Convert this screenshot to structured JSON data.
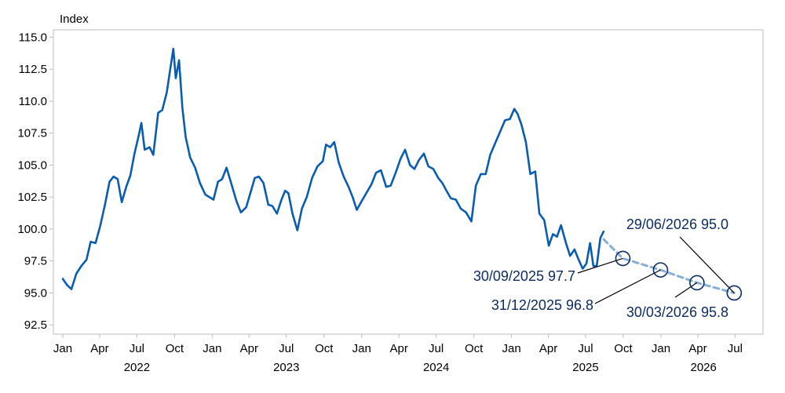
{
  "chart_data": {
    "type": "line",
    "ylabel": "Index",
    "ylim": [
      92.5,
      115.0
    ],
    "yticks": [
      92.5,
      95.0,
      97.5,
      100.0,
      102.5,
      105.0,
      107.5,
      110.0,
      112.5,
      115.0
    ],
    "ytick_labels": [
      "92.5",
      "95.0",
      "97.5",
      "100.0",
      "102.5",
      "105.0",
      "107.5",
      "110.0",
      "112.5",
      "115.0"
    ],
    "xlim": [
      "2022-01-01",
      "2026-07-31"
    ],
    "xticks": [
      {
        "date": "2022-01-01",
        "label": "Jan"
      },
      {
        "date": "2022-04-01",
        "label": "Apr"
      },
      {
        "date": "2022-07-01",
        "label": "Jul"
      },
      {
        "date": "2022-10-01",
        "label": "Oct"
      },
      {
        "date": "2023-01-01",
        "label": "Jan"
      },
      {
        "date": "2023-04-01",
        "label": "Apr"
      },
      {
        "date": "2023-07-01",
        "label": "Jul"
      },
      {
        "date": "2023-10-01",
        "label": "Oct"
      },
      {
        "date": "2024-01-01",
        "label": "Jan"
      },
      {
        "date": "2024-04-01",
        "label": "Apr"
      },
      {
        "date": "2024-07-01",
        "label": "Jul"
      },
      {
        "date": "2024-10-01",
        "label": "Oct"
      },
      {
        "date": "2025-01-01",
        "label": "Jan"
      },
      {
        "date": "2025-04-01",
        "label": "Apr"
      },
      {
        "date": "2025-07-01",
        "label": "Jul"
      },
      {
        "date": "2025-10-01",
        "label": "Oct"
      },
      {
        "date": "2026-01-01",
        "label": "Jan"
      },
      {
        "date": "2026-04-01",
        "label": "Apr"
      },
      {
        "date": "2026-07-01",
        "label": "Jul"
      }
    ],
    "year_labels": [
      {
        "date": "2022-07-01",
        "label": "2022"
      },
      {
        "date": "2023-07-01",
        "label": "2023"
      },
      {
        "date": "2024-07-01",
        "label": "2024"
      },
      {
        "date": "2025-07-01",
        "label": "2025"
      },
      {
        "date": "2026-04-15",
        "label": "2026"
      }
    ],
    "grid": false,
    "colors": {
      "actual": "#0a5cb0",
      "forecast": "#86afd4",
      "marker": "#0d2c63",
      "annotation_text": "#0d2c63",
      "axis": "#bdbdbd"
    },
    "series": [
      {
        "style": "solid",
        "x": [
          "2022-01-01",
          "2022-01-12",
          "2022-01-22",
          "2022-02-03",
          "2022-02-15",
          "2022-02-28",
          "2022-03-10",
          "2022-03-22",
          "2022-04-02",
          "2022-04-14",
          "2022-04-25",
          "2022-05-05",
          "2022-05-15",
          "2022-05-25",
          "2022-06-05",
          "2022-06-15",
          "2022-06-25",
          "2022-07-06",
          "2022-07-12",
          "2022-07-20",
          "2022-08-01",
          "2022-08-10",
          "2022-08-22",
          "2022-09-01",
          "2022-09-12",
          "2022-09-20",
          "2022-09-28",
          "2022-10-04",
          "2022-10-12",
          "2022-10-20",
          "2022-10-28",
          "2022-11-08",
          "2022-11-20",
          "2022-12-02",
          "2022-12-15",
          "2023-01-04",
          "2023-01-15",
          "2023-01-25",
          "2023-02-05",
          "2023-02-17",
          "2023-03-01",
          "2023-03-12",
          "2023-03-25",
          "2023-04-04",
          "2023-04-15",
          "2023-04-25",
          "2023-05-06",
          "2023-05-18",
          "2023-05-28",
          "2023-06-08",
          "2023-06-18",
          "2023-06-28",
          "2023-07-06",
          "2023-07-16",
          "2023-07-28",
          "2023-08-08",
          "2023-08-20",
          "2023-09-02",
          "2023-09-15",
          "2023-09-28",
          "2023-10-06",
          "2023-10-16",
          "2023-10-26",
          "2023-11-06",
          "2023-11-18",
          "2023-11-30",
          "2023-12-10",
          "2023-12-20",
          "2024-01-03",
          "2024-01-14",
          "2024-01-25",
          "2024-02-05",
          "2024-02-17",
          "2024-03-01",
          "2024-03-12",
          "2024-03-24",
          "2024-04-05",
          "2024-04-16",
          "2024-04-28",
          "2024-05-09",
          "2024-05-20",
          "2024-06-01",
          "2024-06-12",
          "2024-06-24",
          "2024-07-06",
          "2024-07-16",
          "2024-07-26",
          "2024-08-06",
          "2024-08-18",
          "2024-08-30",
          "2024-09-12",
          "2024-09-25",
          "2024-10-06",
          "2024-10-18",
          "2024-10-30",
          "2024-11-10",
          "2024-11-22",
          "2024-12-04",
          "2024-12-16",
          "2024-12-28",
          "2025-01-08",
          "2025-01-16",
          "2025-01-25",
          "2025-02-05",
          "2025-02-16",
          "2025-02-28",
          "2025-03-10",
          "2025-03-22",
          "2025-04-02",
          "2025-04-12",
          "2025-04-22",
          "2025-05-02",
          "2025-05-14",
          "2025-05-24",
          "2025-06-04",
          "2025-06-14",
          "2025-06-24",
          "2025-07-03",
          "2025-07-12",
          "2025-07-20",
          "2025-07-28",
          "2025-08-06",
          "2025-08-14"
        ],
        "values": [
          96.1,
          95.6,
          95.3,
          96.5,
          97.1,
          97.6,
          99.0,
          98.9,
          100.2,
          101.9,
          103.7,
          104.1,
          103.9,
          102.1,
          103.3,
          104.2,
          105.9,
          107.4,
          108.3,
          106.2,
          106.4,
          105.8,
          109.1,
          109.3,
          110.7,
          112.4,
          114.1,
          111.8,
          113.2,
          109.5,
          107.2,
          105.6,
          104.8,
          103.6,
          102.7,
          102.3,
          103.7,
          103.9,
          104.8,
          103.5,
          102.2,
          101.3,
          101.7,
          102.8,
          104.0,
          104.1,
          103.6,
          101.9,
          101.8,
          101.2,
          102.2,
          103.0,
          102.8,
          101.2,
          99.9,
          101.6,
          102.5,
          104.0,
          104.9,
          105.3,
          106.6,
          106.4,
          106.8,
          105.2,
          104.1,
          103.3,
          102.5,
          101.5,
          102.3,
          102.9,
          103.5,
          104.4,
          104.6,
          103.3,
          103.4,
          104.4,
          105.5,
          106.2,
          105.0,
          104.7,
          105.4,
          105.9,
          104.9,
          104.7,
          104.0,
          103.6,
          103.0,
          102.4,
          102.3,
          101.6,
          101.3,
          100.6,
          103.4,
          104.3,
          104.3,
          105.8,
          106.7,
          107.6,
          108.5,
          108.6,
          109.4,
          109.0,
          108.2,
          106.8,
          104.3,
          104.5,
          101.2,
          100.7,
          98.7,
          99.6,
          99.4,
          100.3,
          98.9,
          97.9,
          98.4,
          97.6,
          96.9,
          97.3,
          98.9,
          97.1,
          97.1,
          99.3,
          99.8
        ]
      },
      {
        "style": "dashed",
        "x": [
          "2025-08-14",
          "2025-09-30",
          "2025-12-31",
          "2026-03-30",
          "2026-06-29"
        ],
        "values": [
          99.2,
          97.7,
          96.8,
          95.8,
          95.0
        ]
      }
    ],
    "annotations": [
      {
        "date": "2025-09-30",
        "value": 97.7,
        "text": "30/09/2025 97.7"
      },
      {
        "date": "2025-12-31",
        "value": 96.8,
        "text": "31/12/2025 96.8"
      },
      {
        "date": "2026-03-30",
        "value": 95.8,
        "text": "30/03/2026 95.8"
      },
      {
        "date": "2026-06-29",
        "value": 95.0,
        "text": "29/06/2026 95.0"
      }
    ]
  }
}
